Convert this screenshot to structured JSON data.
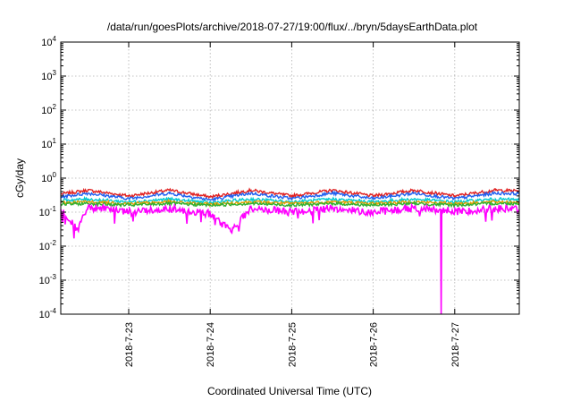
{
  "chart_data": {
    "type": "line",
    "title": "/data/run/goesPlots/archive/2018-07-27/19:00/flux/../bryn/5daysEarthData.plot",
    "xlabel": "Coordinated Universal Time (UTC)",
    "ylabel": "cGy/day",
    "yscale": "log",
    "ylim": [
      0.0001,
      10000
    ],
    "y_ticks": [
      {
        "value": 0.0001,
        "base": "10",
        "exp": "-4"
      },
      {
        "value": 0.001,
        "base": "10",
        "exp": "-3"
      },
      {
        "value": 0.01,
        "base": "10",
        "exp": "-2"
      },
      {
        "value": 0.1,
        "base": "10",
        "exp": "-1"
      },
      {
        "value": 1,
        "base": "10",
        "exp": "0"
      },
      {
        "value": 10,
        "base": "10",
        "exp": "1"
      },
      {
        "value": 100,
        "base": "10",
        "exp": "2"
      },
      {
        "value": 1000,
        "base": "10",
        "exp": "3"
      },
      {
        "value": 10000,
        "base": "10",
        "exp": "4"
      }
    ],
    "xlim": [
      "2018-07-22 04:00",
      "2018-07-27 19:00"
    ],
    "x_ticks": [
      {
        "value": "2018-07-23 00:00",
        "label": "2018-7-23"
      },
      {
        "value": "2018-07-24 00:00",
        "label": "2018-7-24"
      },
      {
        "value": "2018-07-25 00:00",
        "label": "2018-7-25"
      },
      {
        "value": "2018-07-26 00:00",
        "label": "2018-7-26"
      },
      {
        "value": "2018-07-27 00:00",
        "label": "2018-7-27"
      }
    ],
    "grid": true,
    "legend": "none",
    "series": [
      {
        "color": "#e02020",
        "x": [
          "2018-07-22 04:00",
          "2018-07-22 12:00",
          "2018-07-23 00:00",
          "2018-07-23 12:00",
          "2018-07-24 00:00",
          "2018-07-24 12:00",
          "2018-07-25 00:00",
          "2018-07-25 12:00",
          "2018-07-26 00:00",
          "2018-07-26 12:00",
          "2018-07-27 00:00",
          "2018-07-27 12:00",
          "2018-07-27 19:00"
        ],
        "y": [
          0.34,
          0.44,
          0.3,
          0.44,
          0.28,
          0.44,
          0.3,
          0.44,
          0.3,
          0.44,
          0.3,
          0.44,
          0.42
        ]
      },
      {
        "color": "#2060f0",
        "x": [
          "2018-07-22 04:00",
          "2018-07-22 12:00",
          "2018-07-23 00:00",
          "2018-07-23 12:00",
          "2018-07-24 00:00",
          "2018-07-24 12:00",
          "2018-07-25 00:00",
          "2018-07-25 12:00",
          "2018-07-26 00:00",
          "2018-07-26 12:00",
          "2018-07-27 00:00",
          "2018-07-27 12:00",
          "2018-07-27 19:00"
        ],
        "y": [
          0.28,
          0.36,
          0.25,
          0.36,
          0.23,
          0.36,
          0.25,
          0.36,
          0.25,
          0.36,
          0.25,
          0.36,
          0.35
        ]
      },
      {
        "color": "#00c8d0",
        "x": [
          "2018-07-22 04:00",
          "2018-07-22 12:00",
          "2018-07-23 00:00",
          "2018-07-23 12:00",
          "2018-07-24 00:00",
          "2018-07-24 12:00",
          "2018-07-25 00:00",
          "2018-07-25 12:00",
          "2018-07-26 00:00",
          "2018-07-26 12:00",
          "2018-07-27 00:00",
          "2018-07-27 12:00",
          "2018-07-27 19:00"
        ],
        "y": [
          0.22,
          0.24,
          0.2,
          0.24,
          0.19,
          0.24,
          0.2,
          0.24,
          0.2,
          0.24,
          0.2,
          0.24,
          0.23
        ]
      },
      {
        "color": "#e8a000",
        "x": [
          "2018-07-22 04:00",
          "2018-07-22 12:00",
          "2018-07-23 00:00",
          "2018-07-23 12:00",
          "2018-07-24 00:00",
          "2018-07-24 12:00",
          "2018-07-25 00:00",
          "2018-07-25 12:00",
          "2018-07-26 00:00",
          "2018-07-26 12:00",
          "2018-07-27 00:00",
          "2018-07-27 12:00",
          "2018-07-27 19:00"
        ],
        "y": [
          0.19,
          0.2,
          0.18,
          0.2,
          0.17,
          0.2,
          0.18,
          0.2,
          0.18,
          0.2,
          0.18,
          0.2,
          0.2
        ]
      },
      {
        "color": "#30b030",
        "x": [
          "2018-07-22 04:00",
          "2018-07-22 12:00",
          "2018-07-23 00:00",
          "2018-07-23 12:00",
          "2018-07-24 00:00",
          "2018-07-24 12:00",
          "2018-07-25 00:00",
          "2018-07-25 12:00",
          "2018-07-26 00:00",
          "2018-07-26 12:00",
          "2018-07-27 00:00",
          "2018-07-27 12:00",
          "2018-07-27 19:00"
        ],
        "y": [
          0.17,
          0.18,
          0.16,
          0.18,
          0.16,
          0.18,
          0.16,
          0.18,
          0.16,
          0.18,
          0.16,
          0.18,
          0.18
        ]
      },
      {
        "color": "#ff00ff",
        "x": [
          "2018-07-22 04:00",
          "2018-07-22 09:00",
          "2018-07-22 12:00",
          "2018-07-23 00:00",
          "2018-07-23 12:00",
          "2018-07-24 00:00",
          "2018-07-24 06:00",
          "2018-07-24 12:00",
          "2018-07-25 00:00",
          "2018-07-25 12:00",
          "2018-07-26 00:00",
          "2018-07-26 12:00",
          "2018-07-26 19:50",
          "2018-07-26 20:00",
          "2018-07-26 20:10",
          "2018-07-27 00:00",
          "2018-07-27 12:00",
          "2018-07-27 19:00"
        ],
        "y": [
          0.12,
          0.03,
          0.14,
          0.1,
          0.13,
          0.09,
          0.028,
          0.13,
          0.1,
          0.13,
          0.1,
          0.13,
          0.12,
          0.0001,
          0.12,
          0.1,
          0.13,
          0.12
        ]
      }
    ]
  }
}
